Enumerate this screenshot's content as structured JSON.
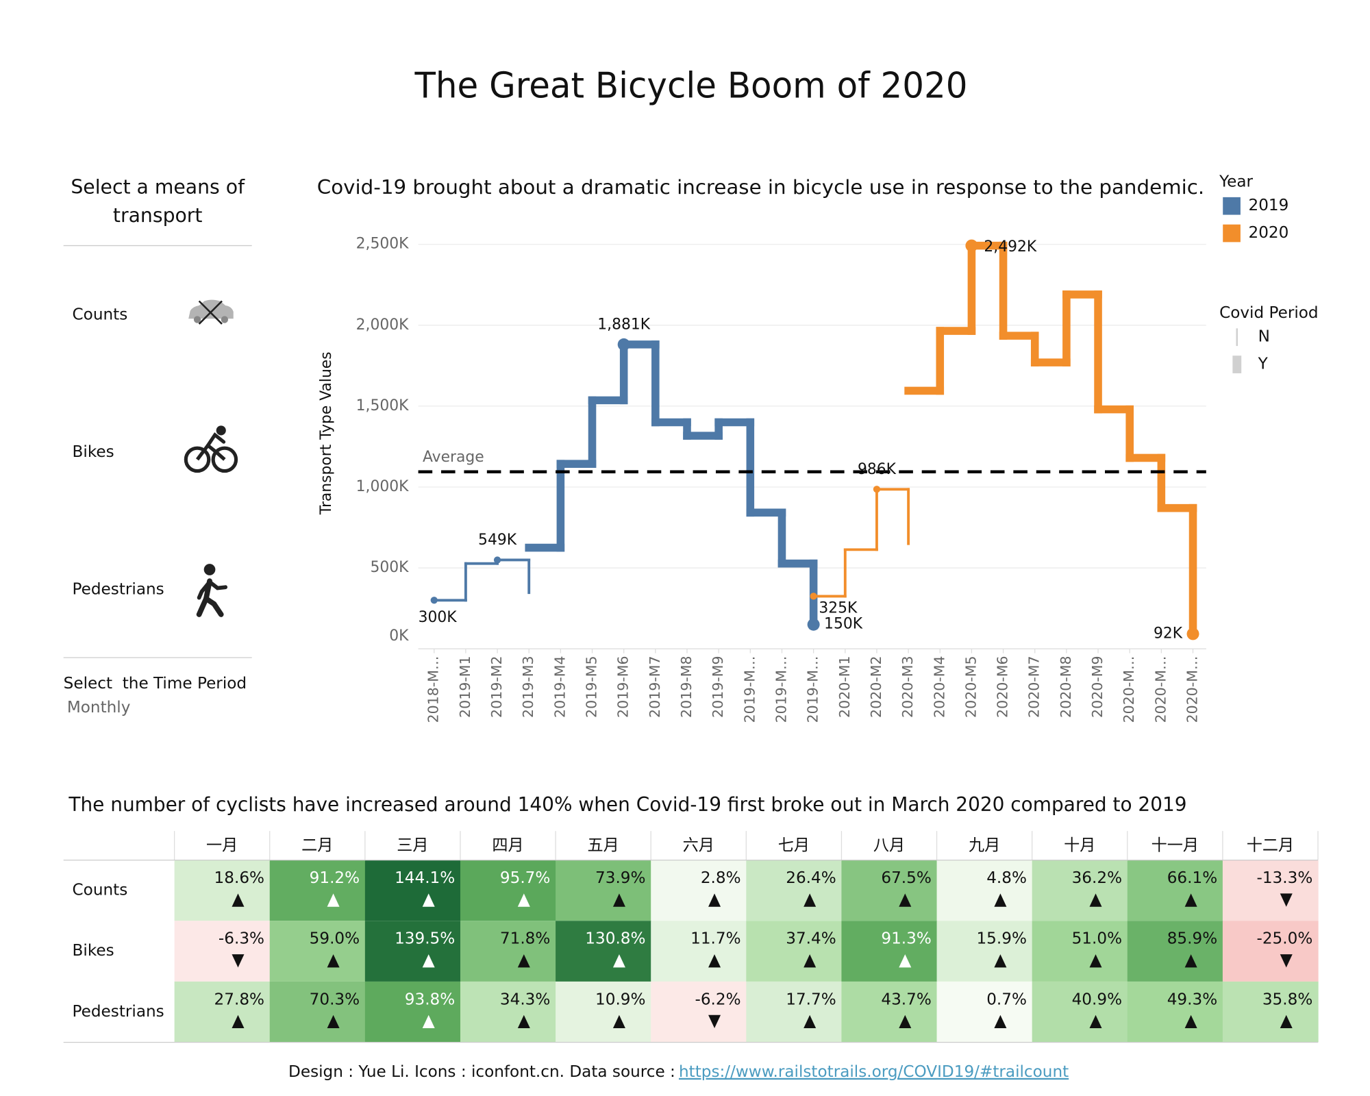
{
  "title": "The Great Bicycle Boom of 2020",
  "sidebar": {
    "heading": "Select a means of transport",
    "options": [
      "Counts",
      "Bikes",
      "Pedestrians"
    ],
    "period_label": "Select  the Time Period",
    "period_value": "Monthly"
  },
  "chart_data": {
    "type": "step",
    "title": "Covid-19 brought about a dramatic increase in bicycle use in response to the pandemic.",
    "ylabel": "Transport Type Values",
    "categories": [
      "2018-M…",
      "2019-M1",
      "2019-M2",
      "2019-M3",
      "2019-M4",
      "2019-M5",
      "2019-M6",
      "2019-M7",
      "2019-M8",
      "2019-M9",
      "2019-M…",
      "2019-M…",
      "2019-M…",
      "2020-M1",
      "2020-M2",
      "2020-M3",
      "2020-M4",
      "2020-M5",
      "2020-M6",
      "2020-M7",
      "2020-M8",
      "2020-M9",
      "2020-M…",
      "2020-M…",
      "2020-M…"
    ],
    "ylim": [
      0,
      2650
    ],
    "yticks": [
      {
        "value": 0,
        "label": "0K"
      },
      {
        "value": 500,
        "label": "500K"
      },
      {
        "value": 1000,
        "label": "1,000K"
      },
      {
        "value": 1500,
        "label": "1,500K"
      },
      {
        "value": 2000,
        "label": "2,000K"
      },
      {
        "value": 2500,
        "label": "2,500K"
      }
    ],
    "grid": true,
    "reference_line": {
      "label": "Average",
      "value": 1094,
      "color": "#000000"
    },
    "legend": {
      "title": "Year"
    },
    "size_legend": {
      "title": "Covid Period",
      "items": [
        "N",
        "Y"
      ],
      "color": "#d0d0d0"
    },
    "series": [
      {
        "name": "2019",
        "color": "#4e79a7",
        "pieces": [
          {
            "period": 0,
            "values": [
              300,
              527,
              549,
              347,
              null,
              null,
              null,
              null,
              null,
              null,
              null,
              null,
              null,
              null,
              null,
              null,
              null,
              null,
              null,
              null,
              null,
              null,
              null,
              null,
              null
            ],
            "value_labels": [
              "300K",
              null,
              "549K",
              null,
              null,
              null,
              null,
              null,
              null,
              null,
              null,
              null,
              null,
              null,
              null,
              null,
              null,
              null,
              null,
              null,
              null,
              null,
              null,
              null,
              null
            ]
          },
          {
            "period": 1,
            "values": [
              null,
              null,
              null,
              625,
              1143,
              1536,
              1881,
              1400,
              1317,
              1400,
              842,
              527,
              150,
              null,
              null,
              null,
              null,
              null,
              null,
              null,
              null,
              null,
              null,
              null,
              null
            ],
            "value_labels": [
              null,
              null,
              null,
              null,
              null,
              null,
              "1,881K",
              null,
              null,
              null,
              null,
              null,
              "150K",
              null,
              null,
              null,
              null,
              null,
              null,
              null,
              null,
              null,
              null,
              null,
              null
            ]
          }
        ]
      },
      {
        "name": "2020",
        "color": "#f28e2b",
        "pieces": [
          {
            "period": 0,
            "values": [
              null,
              null,
              null,
              null,
              null,
              null,
              null,
              null,
              null,
              null,
              null,
              null,
              325,
              613,
              986,
              650,
              null,
              null,
              null,
              null,
              null,
              null,
              null,
              null,
              null
            ],
            "value_labels": [
              null,
              null,
              null,
              null,
              null,
              null,
              null,
              null,
              null,
              null,
              null,
              null,
              "325K",
              null,
              "986K",
              null,
              null,
              null,
              null,
              null,
              null,
              null,
              null,
              null,
              null
            ]
          },
          {
            "period": 1,
            "values": [
              null,
              null,
              null,
              null,
              null,
              null,
              null,
              null,
              null,
              null,
              null,
              null,
              null,
              null,
              null,
              1595,
              1965,
              2492,
              1935,
              1770,
              2190,
              1480,
              1180,
              870,
              92
            ],
            "value_labels": [
              null,
              null,
              null,
              null,
              null,
              null,
              null,
              null,
              null,
              null,
              null,
              null,
              null,
              null,
              null,
              null,
              null,
              "2,492K",
              null,
              null,
              null,
              null,
              null,
              null,
              "92K"
            ]
          }
        ]
      }
    ]
  },
  "table": {
    "title": "The number of cyclists have increased around 140% when Covid-19 first broke out in March 2020 compared to 2019",
    "columns": [
      "一月",
      "二月",
      "三月",
      "四月",
      "五月",
      "六月",
      "七月",
      "八月",
      "九月",
      "十月",
      "十一月",
      "十二月"
    ],
    "rows": [
      {
        "name": "Counts",
        "values": [
          18.6,
          91.2,
          144.1,
          95.7,
          73.9,
          2.8,
          26.4,
          67.5,
          4.8,
          36.2,
          66.1,
          -13.3
        ],
        "value_labels": [
          "18.6%",
          "91.2%",
          "144.1%",
          "95.7%",
          "73.9%",
          "2.8%",
          "26.4%",
          "67.5%",
          "4.8%",
          "36.2%",
          "66.1%",
          "-13.3%"
        ]
      },
      {
        "name": "Bikes",
        "values": [
          -6.3,
          59.0,
          139.5,
          71.8,
          130.8,
          11.7,
          37.4,
          91.3,
          15.9,
          51.0,
          85.9,
          -25.0
        ],
        "value_labels": [
          "-6.3%",
          "59.0%",
          "139.5%",
          "71.8%",
          "130.8%",
          "11.7%",
          "37.4%",
          "91.3%",
          "15.9%",
          "51.0%",
          "85.9%",
          "-25.0%"
        ]
      },
      {
        "name": "Pedestrians",
        "values": [
          27.8,
          70.3,
          93.8,
          34.3,
          10.9,
          -6.2,
          17.7,
          43.7,
          0.7,
          40.9,
          49.3,
          35.8
        ],
        "value_labels": [
          "27.8%",
          "70.3%",
          "93.8%",
          "34.3%",
          "10.9%",
          "-6.2%",
          "17.7%",
          "43.7%",
          "0.7%",
          "40.9%",
          "49.3%",
          "35.8%"
        ]
      }
    ],
    "colors": {
      "positive": [
        "#f7fbf4",
        "#a6d99c",
        "#5aa85a",
        "#1e6b38"
      ],
      "negative": [
        "#fdf3f2",
        "#f8c9c7"
      ]
    }
  },
  "footer": {
    "text": "Design : Yue Li. Icons : iconfont.cn. Data source :",
    "link": "https://www.railstotrails.org/COVID19/#trailcount"
  }
}
